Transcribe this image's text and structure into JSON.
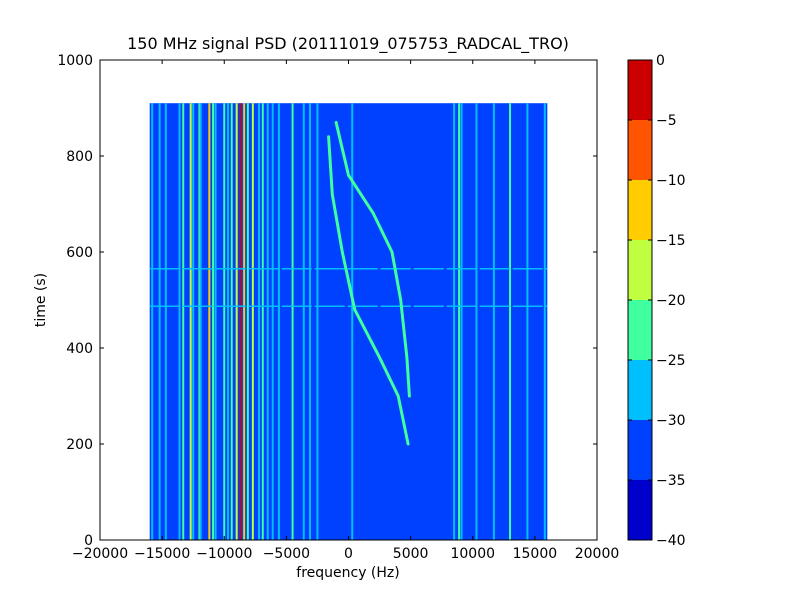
{
  "chart_data": {
    "type": "heatmap",
    "title": "150 MHz signal PSD (20111019_075753_RADCAL_TRO)",
    "xlabel": "frequency (Hz)",
    "ylabel": "time (s)",
    "xlim": [
      -20000,
      20000
    ],
    "ylim": [
      0,
      1000
    ],
    "xticks": [
      -20000,
      -15000,
      -10000,
      -5000,
      0,
      5000,
      10000,
      15000,
      20000
    ],
    "xtick_labels": [
      "−20000",
      "−15000",
      "−10000",
      "−5000",
      "0",
      "5000",
      "10000",
      "15000",
      "20000"
    ],
    "yticks": [
      0,
      200,
      400,
      600,
      800,
      1000
    ],
    "ytick_labels": [
      "0",
      "200",
      "400",
      "600",
      "800",
      "1000"
    ],
    "data_extent": {
      "x": [
        -16000,
        16000
      ],
      "y": [
        0,
        910
      ]
    },
    "background_level": -35,
    "colorbar": {
      "levels": [
        -40,
        -35,
        -30,
        -25,
        -20,
        -15,
        -10,
        -5,
        0
      ],
      "tick_labels": [
        "−40",
        "−35",
        "−30",
        "−25",
        "−20",
        "−15",
        "−10",
        "−5",
        "0"
      ],
      "colors": [
        "#0000cc",
        "#0040ff",
        "#00bfff",
        "#40ff9f",
        "#bfff40",
        "#ffcc00",
        "#ff5500",
        "#cc0000"
      ]
    },
    "vertical_lines": [
      {
        "x": -15800,
        "level": -30
      },
      {
        "x": -15200,
        "level": -30
      },
      {
        "x": -14700,
        "level": -30
      },
      {
        "x": -13600,
        "level": -30
      },
      {
        "x": -13300,
        "level": -25
      },
      {
        "x": -12700,
        "level": -20
      },
      {
        "x": -12500,
        "level": -30
      },
      {
        "x": -12000,
        "level": -25
      },
      {
        "x": -11900,
        "level": -30
      },
      {
        "x": -11200,
        "level": -15
      },
      {
        "x": -10900,
        "level": -25
      },
      {
        "x": -10700,
        "level": -30
      },
      {
        "x": -10000,
        "level": -25
      },
      {
        "x": -9700,
        "level": -30
      },
      {
        "x": -9400,
        "level": -25
      },
      {
        "x": -9000,
        "level": -20
      },
      {
        "x": -8700,
        "level": -5
      },
      {
        "x": -8400,
        "level": -15
      },
      {
        "x": -8100,
        "level": -25
      },
      {
        "x": -7700,
        "level": -20
      },
      {
        "x": -7200,
        "level": -30
      },
      {
        "x": -6900,
        "level": -25
      },
      {
        "x": -6500,
        "level": -30
      },
      {
        "x": -6100,
        "level": -30
      },
      {
        "x": -5600,
        "level": -30
      },
      {
        "x": -4500,
        "level": -25
      },
      {
        "x": -3600,
        "level": -30
      },
      {
        "x": -3100,
        "level": -30
      },
      {
        "x": -2500,
        "level": -30
      },
      {
        "x": 300,
        "level": -30
      },
      {
        "x": 8500,
        "level": -30
      },
      {
        "x": 8900,
        "level": -25
      },
      {
        "x": 9100,
        "level": -30
      },
      {
        "x": 10300,
        "level": -30
      },
      {
        "x": 11700,
        "level": -30
      },
      {
        "x": 13000,
        "level": -25
      },
      {
        "x": 14400,
        "level": -30
      },
      {
        "x": 15800,
        "level": -30
      }
    ],
    "horizontal_lines": [
      {
        "y": 487,
        "level": -30
      },
      {
        "y": 565,
        "level": -30
      }
    ],
    "curves": [
      {
        "level": -25,
        "points": [
          [
            -1000,
            870
          ],
          [
            0,
            760
          ],
          [
            2000,
            680
          ],
          [
            3500,
            600
          ],
          [
            4200,
            500
          ],
          [
            4700,
            380
          ],
          [
            4900,
            300
          ]
        ]
      },
      {
        "level": -25,
        "points": [
          [
            -1600,
            840
          ],
          [
            -1300,
            720
          ],
          [
            -500,
            600
          ],
          [
            500,
            480
          ],
          [
            2500,
            380
          ],
          [
            4000,
            300
          ],
          [
            4800,
            200
          ]
        ]
      }
    ]
  }
}
